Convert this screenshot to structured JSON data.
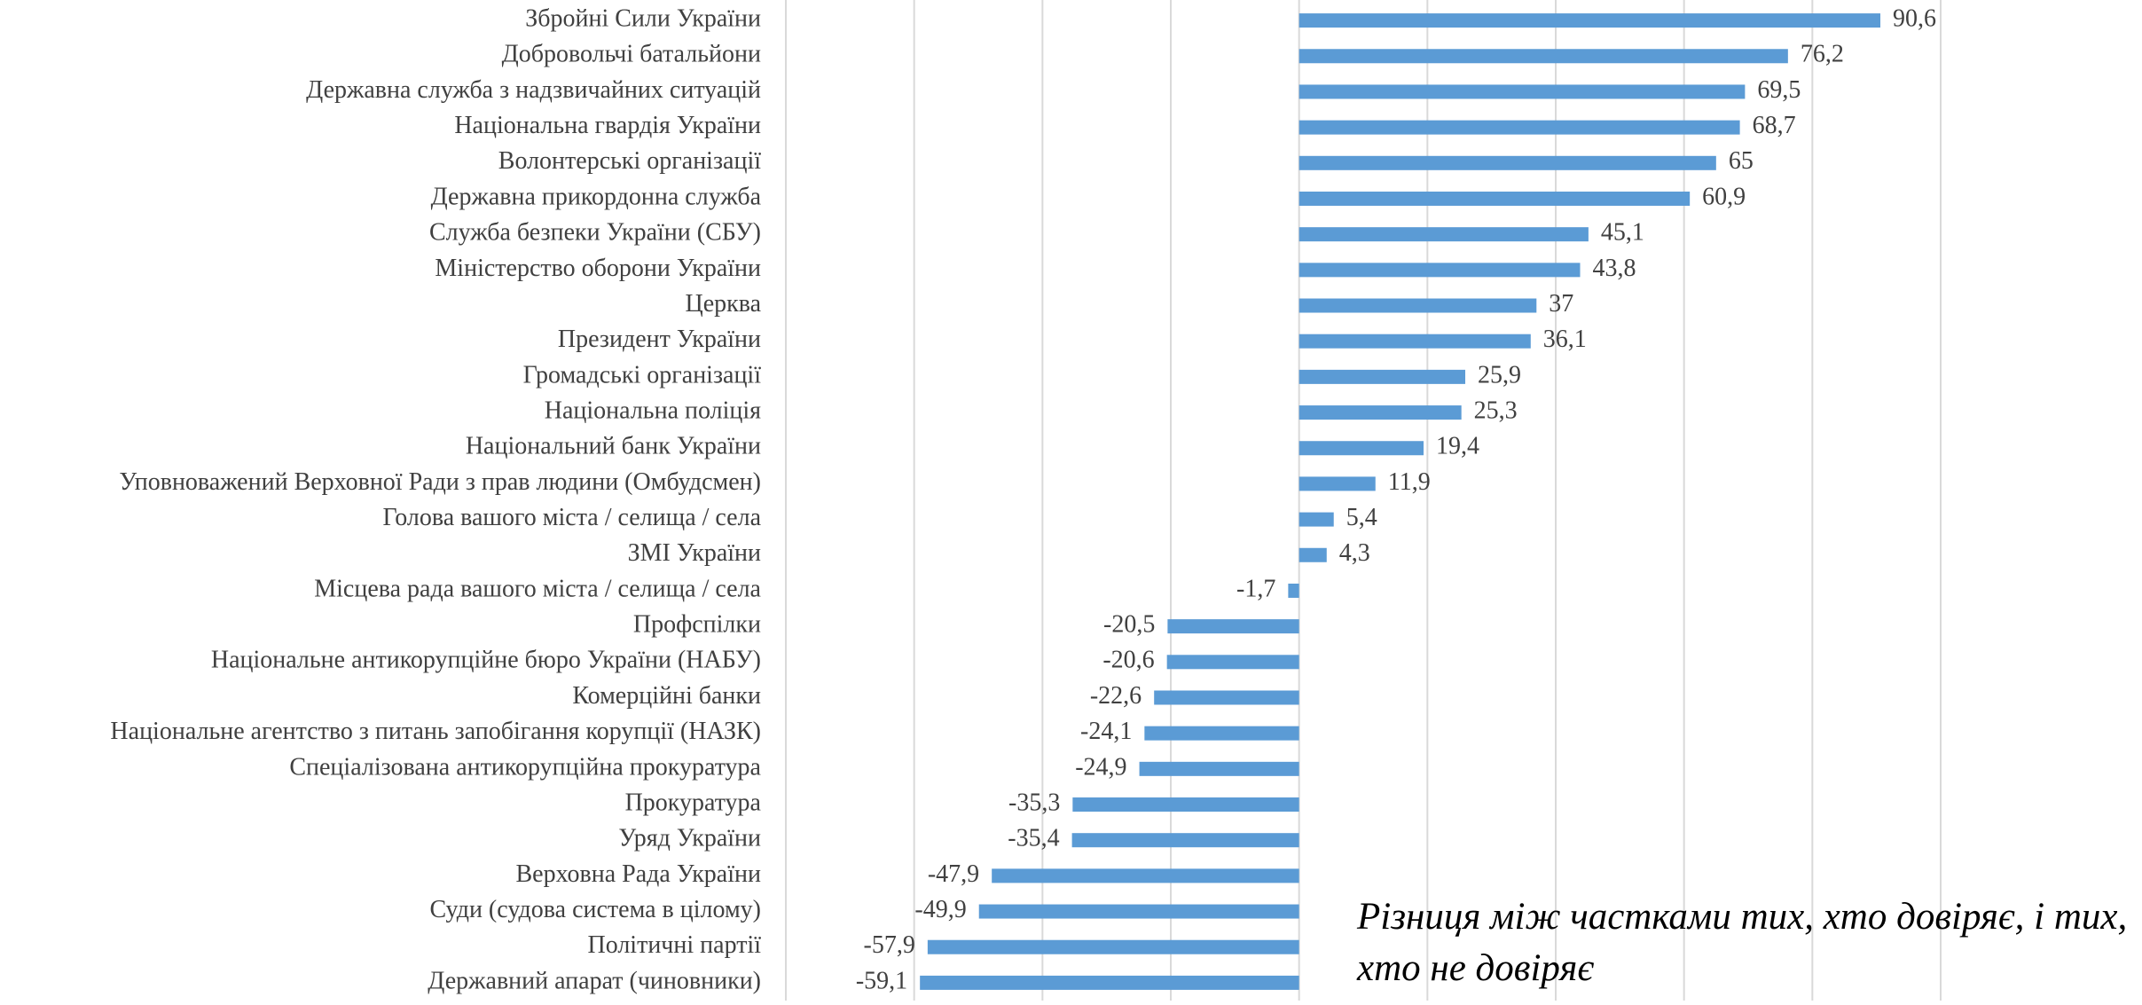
{
  "chart_data": {
    "type": "hbar",
    "categories": [
      "Збройні Сили України",
      "Добровольчі батальйони",
      "Державна служба з надзвичайних ситуацій",
      "Національна гвардія України",
      "Волонтерські організації",
      "Державна прикордонна служба",
      "Служба безпеки України (СБУ)",
      "Міністерство оборони України",
      "Церква",
      "Президент України",
      "Громадські організації",
      "Національна поліція",
      "Національний банк України",
      "Уповноважений Верховної Ради  з прав людини (Омбудсмен)",
      "Голова вашого міста / селища / села",
      "ЗМІ України",
      "Місцева рада вашого міста / селища / села",
      "Профспілки",
      "Національне антикорупційне бюро України (НАБУ)",
      "Комерційні банки",
      "Національне агентство з питань запобігання корупції (НАЗК)",
      "Спеціалізована антикорупційна прокуратура",
      "Прокуратура",
      "Уряд України",
      "Верховна Рада України",
      "Суди (судова система в цілому)",
      "Політичні партії",
      "Державний апарат (чиновники)"
    ],
    "values": [
      90.6,
      76.2,
      69.5,
      68.7,
      65,
      60.9,
      45.1,
      43.8,
      37,
      36.1,
      25.9,
      25.3,
      19.4,
      11.9,
      5.4,
      4.3,
      -1.7,
      -20.5,
      -20.6,
      -22.6,
      -24.1,
      -24.9,
      -35.3,
      -35.4,
      -47.9,
      -49.9,
      -57.9,
      -59.1
    ],
    "value_labels": [
      "90,6",
      "76,2",
      "69,5",
      "68,7",
      "65",
      "60,9",
      "45,1",
      "43,8",
      "37",
      "36,1",
      "25,9",
      "25,3",
      "19,4",
      "11,9",
      "5,4",
      "4,3",
      "-1,7",
      "-20,5",
      "-20,6",
      "-22,6",
      "-24,1",
      "-24,9",
      "-35,3",
      "-35,4",
      "-47,9",
      "-49,9",
      "-57,9",
      "-59,1"
    ],
    "color": "#5b9bd5",
    "xlim": [
      -80,
      100
    ],
    "xticks": [
      -80,
      -60,
      -40,
      -20,
      0,
      20,
      40,
      60,
      80,
      100
    ],
    "grid": true,
    "annotation": "Різниця між частками тих, хто довіряє, і тих, хто не довіряє"
  }
}
